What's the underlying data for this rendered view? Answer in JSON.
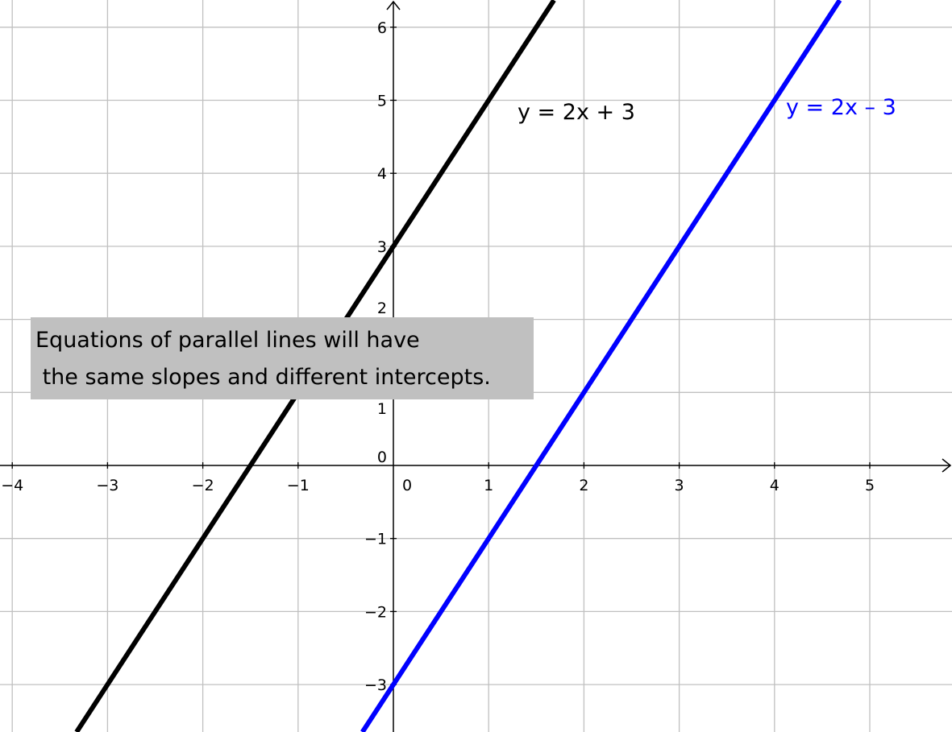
{
  "chart_data": {
    "type": "line",
    "xlim": [
      -4.13,
      5.87
    ],
    "ylim": [
      -3.65,
      6.37
    ],
    "grid": true,
    "x_ticks": [
      -4,
      -3,
      -2,
      -1,
      0,
      1,
      2,
      3,
      4,
      5
    ],
    "y_ticks": [
      -3,
      -2,
      -1,
      0,
      1,
      2,
      3,
      4,
      5,
      6
    ],
    "origin_label": "0",
    "series": [
      {
        "name": "y = 2x + 3",
        "slope": 2,
        "intercept": 3,
        "color": "#000000"
      },
      {
        "name": "y = 2x – 3",
        "slope": 2,
        "intercept": -3,
        "color": "#0000ff"
      }
    ],
    "annotation": {
      "line1": "Equations of parallel lines will have",
      "line2": " the same slopes and different intercepts."
    },
    "colors": {
      "grid": "#c0c0c0",
      "axis": "#000000",
      "annotation_bg": "#c0c0c0"
    }
  }
}
